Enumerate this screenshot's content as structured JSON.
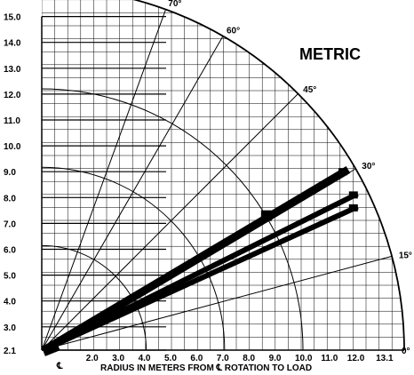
{
  "title": "METRIC",
  "x_caption": "RADIUS IN METERS FROM ℄ ROTATION TO LOAD",
  "cl_symbol": "℄",
  "chart_data": {
    "type": "diagram",
    "title": "METRIC",
    "y_axis": {
      "ticks": [
        2.1,
        3.0,
        4.0,
        5.0,
        6.0,
        7.0,
        8.0,
        9.0,
        10.0,
        11.0,
        12.0,
        13.0,
        14.0,
        15.0
      ],
      "labels": [
        "2.1",
        "3.0",
        "4.0",
        "5.0",
        "6.0",
        "7.0",
        "8.0",
        "9.0",
        "10.0",
        "11.0",
        "12.0",
        "13.0",
        "14.0",
        "15.0"
      ]
    },
    "x_axis": {
      "ticks": [
        2.0,
        3.0,
        4.0,
        5.0,
        6.0,
        7.0,
        8.0,
        9.0,
        10.0,
        11.0,
        12.0,
        13.1
      ],
      "labels": [
        "2.0",
        "3.0",
        "4.0",
        "5.0",
        "6.0",
        "7.0",
        "8.0",
        "9.0",
        "10.0",
        "11.0",
        "12.0",
        "13.1"
      ],
      "label": "RADIUS IN METERS FROM ℄ ROTATION TO LOAD"
    },
    "boom_angles": [
      "0°",
      "15°",
      "30°",
      "45°",
      "60°",
      "70°"
    ],
    "boom_angle_values": [
      0,
      15,
      30,
      45,
      60,
      70
    ],
    "boom_pivot": [
      0,
      2.1
    ],
    "radius_arcs": [
      4.0,
      7.0,
      10.0,
      13.1
    ]
  },
  "colors": {
    "ink": "#000000",
    "background": "#ffffff"
  }
}
